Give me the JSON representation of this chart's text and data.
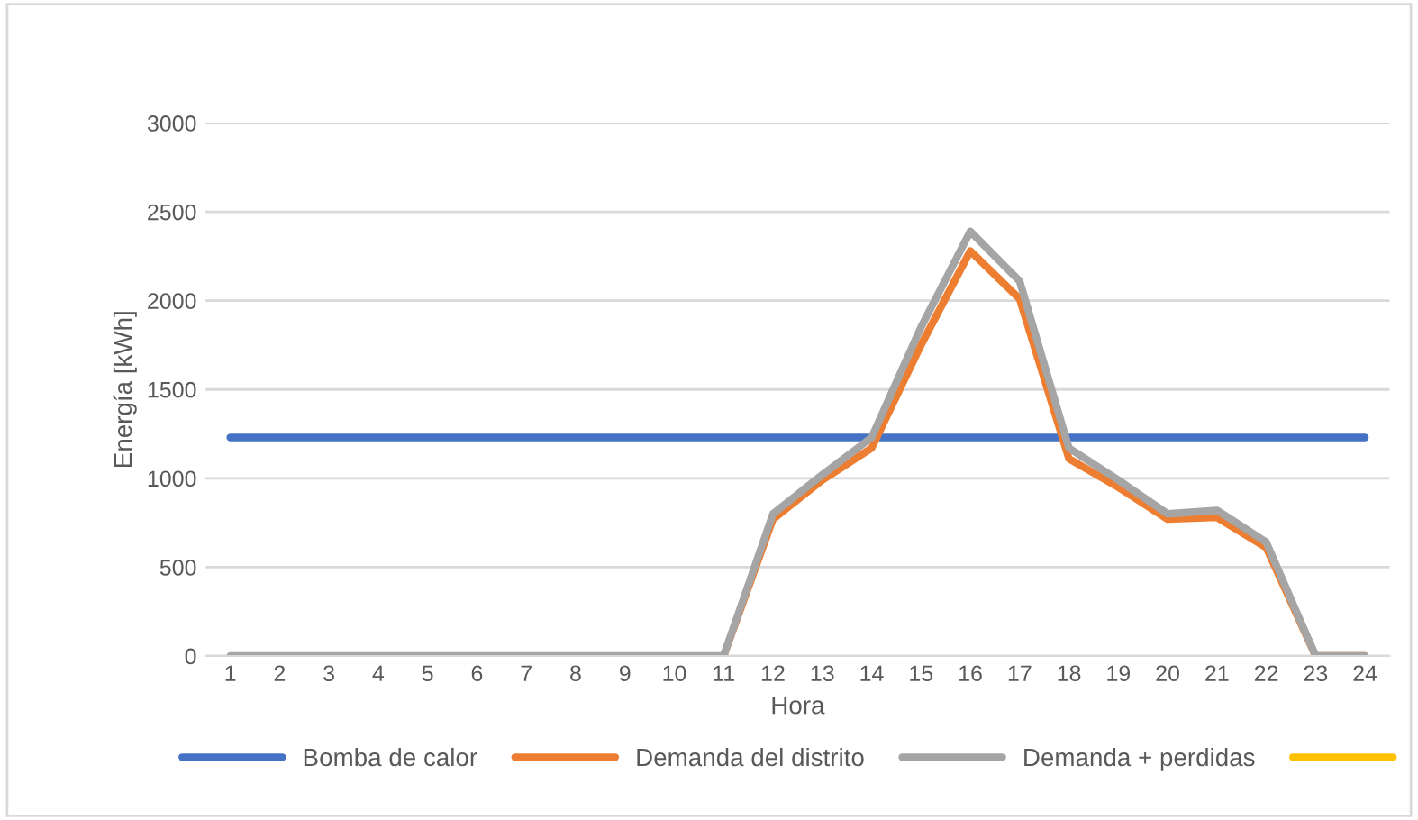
{
  "chart_data": {
    "type": "line",
    "xlabel": "Hora",
    "ylabel": "Energía [kWh]",
    "categories": [
      "1",
      "2",
      "3",
      "4",
      "5",
      "6",
      "7",
      "8",
      "9",
      "10",
      "11",
      "12",
      "13",
      "14",
      "15",
      "16",
      "17",
      "18",
      "19",
      "20",
      "21",
      "22",
      "23",
      "24"
    ],
    "series": [
      {
        "name": "Bomba de calor",
        "color": "#4472c4",
        "values": [
          1230,
          1230,
          1230,
          1230,
          1230,
          1230,
          1230,
          1230,
          1230,
          1230,
          1230,
          1230,
          1230,
          1230,
          1230,
          1230,
          1230,
          1230,
          1230,
          1230,
          1230,
          1230,
          1230,
          1230
        ]
      },
      {
        "name": "Demanda del distrito",
        "color": "#ed7d31",
        "values": [
          null,
          null,
          null,
          null,
          null,
          null,
          null,
          null,
          null,
          null,
          0,
          770,
          990,
          1170,
          1750,
          2280,
          2010,
          1110,
          950,
          770,
          780,
          610,
          0,
          0
        ]
      },
      {
        "name": "Demanda + perdidas",
        "color": "#a5a5a5",
        "values": [
          0,
          0,
          0,
          0,
          0,
          0,
          0,
          0,
          0,
          0,
          0,
          800,
          1020,
          1230,
          1850,
          2390,
          2110,
          1170,
          990,
          800,
          820,
          640,
          0,
          0
        ]
      },
      {
        "color": "#ffc000",
        "values": [
          null,
          null,
          null,
          null,
          null,
          null,
          null,
          null,
          null,
          null,
          null,
          null,
          null,
          null,
          null,
          null,
          null,
          null,
          null,
          null,
          null,
          null,
          null,
          null
        ]
      }
    ],
    "ylim": [
      0,
      3000
    ],
    "yticks": [
      0,
      500,
      1000,
      1500,
      2000,
      2500,
      3000
    ],
    "grid": "y",
    "legend": "bottom",
    "marker": "none",
    "line_style": "solid"
  }
}
